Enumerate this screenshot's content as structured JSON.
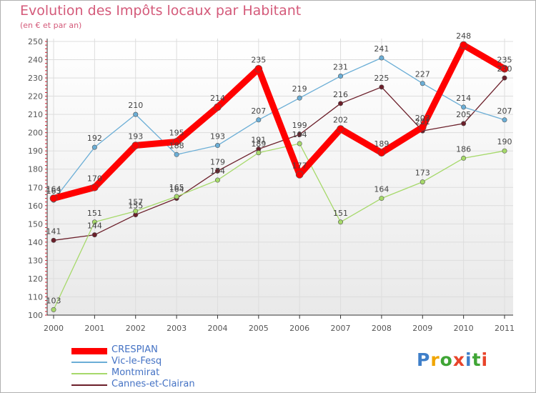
{
  "chart_data": {
    "type": "line",
    "title": "Evolution des Impôts locaux par Habitant",
    "subtitle": "(en € et par an)",
    "xlabel": "",
    "ylabel": "",
    "ylim": [
      100,
      250
    ],
    "yticks": [
      100,
      110,
      120,
      130,
      140,
      150,
      160,
      170,
      180,
      190,
      200,
      210,
      220,
      230,
      240,
      250
    ],
    "categories": [
      "2000",
      "2001",
      "2002",
      "2003",
      "2004",
      "2005",
      "2006",
      "2007",
      "2008",
      "2009",
      "2010",
      "2011"
    ],
    "grid": true,
    "series": [
      {
        "name": "Cannes-et-Clairan",
        "color": "#6b1f2a",
        "values": [
          141,
          144,
          155,
          164,
          179,
          191,
          199,
          216,
          225,
          201,
          205,
          230
        ]
      },
      {
        "name": "Montmirat",
        "color": "#a6d96a",
        "values": [
          103,
          151,
          157,
          165,
          174,
          189,
          194,
          151,
          164,
          173,
          186,
          190
        ]
      },
      {
        "name": "Vic-le-Fesq",
        "color": "#6baed6",
        "values": [
          163,
          192,
          210,
          188,
          193,
          207,
          219,
          231,
          241,
          227,
          214,
          207
        ]
      },
      {
        "name": "CRESPIAN",
        "color": "#ff0000",
        "values": [
          164,
          170,
          193,
          195,
          214,
          235,
          177,
          202,
          189,
          203,
          248,
          235
        ]
      }
    ]
  },
  "legend": [
    {
      "label": "CRESPIAN",
      "color": "#ff0000"
    },
    {
      "label": "Vic-le-Fesq",
      "color": "#6baed6"
    },
    {
      "label": "Montmirat",
      "color": "#a6d96a"
    },
    {
      "label": "Cannes-et-Clairan",
      "color": "#6b1f2a"
    }
  ],
  "logo": {
    "letters": [
      "P",
      "r",
      "o",
      "x",
      "i",
      "t",
      "i"
    ],
    "colors": [
      "#3f7fc9",
      "#f0a500",
      "#3fa535",
      "#e8442a",
      "#3f7fc9",
      "#3fa535",
      "#e8442a"
    ]
  }
}
